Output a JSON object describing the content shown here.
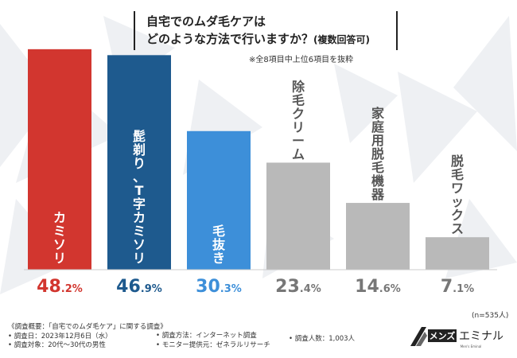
{
  "title": {
    "line1": "自宅でのムダ毛ケアは",
    "line2": "どのような方法で行いますか？",
    "line2_suffix": "(複数回答可)"
  },
  "subnote": "※全8項目中上位6項目を抜粋",
  "chart_data": {
    "type": "bar",
    "title": "自宅でのムダ毛ケアは どのような方法で行いますか？(複数回答可)",
    "categories": [
      "カミソリ",
      "髭剃り、T字カミソリ",
      "毛抜き",
      "除毛クリーム",
      "家庭用脱毛機器",
      "脱毛ワックス"
    ],
    "values": [
      48.2,
      46.9,
      30.3,
      23.4,
      14.6,
      7.1
    ],
    "value_labels": [
      {
        "int": "48",
        "dec": ".2%"
      },
      {
        "int": "46",
        "dec": ".9%"
      },
      {
        "int": "30",
        "dec": ".3%"
      },
      {
        "int": "23",
        "dec": ".4%"
      },
      {
        "int": "14",
        "dec": ".6%"
      },
      {
        "int": "7",
        "dec": ".1%"
      }
    ],
    "bar_colors": [
      "#d2362f",
      "#1e5a8e",
      "#3d8fd9",
      "#b9b9b9",
      "#b9b9b9",
      "#b9b9b9"
    ],
    "label_colors": [
      "#d2362f",
      "#1e5a8e",
      "#3d8fd9",
      "#777777",
      "#777777",
      "#777777"
    ],
    "xlabel": "",
    "ylabel": "",
    "ylim": [
      0,
      52
    ],
    "grid": false,
    "legend": "none"
  },
  "n_note": "(n=535人)",
  "footer": {
    "summary": "《調査概要：「自宅でのムダ毛ケア」に関する調査》",
    "date": "• 調査日：2023年12月6日（水）",
    "target": "• 調査対象：20代～30代の男性",
    "method": "• 調査方法：インターネット調査",
    "provider": "• モニター提供元：ゼネラルリサーチ",
    "count": "• 調査人数：1,003人"
  },
  "brand": {
    "name_left": "メンズ",
    "name_right": "エミナル",
    "tagline": "Men's Eminal"
  }
}
